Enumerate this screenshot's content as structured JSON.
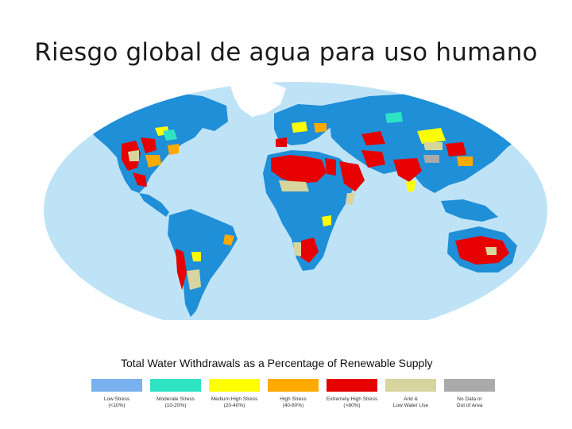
{
  "slide": {
    "title": "Riesgo global de agua para uso humano"
  },
  "map": {
    "ocean_color": "#bfe3f6",
    "legend_title": "Total Water Withdrawals as a Percentage of Renewable Supply",
    "categories": [
      {
        "id": "low",
        "label": "Low Stress",
        "range": "(<10%)",
        "color": "#79b1ef"
      },
      {
        "id": "moderate",
        "label": "Moderate Stress",
        "range": "(10-20%)",
        "color": "#2ee3c4"
      },
      {
        "id": "medium-high",
        "label": "Medium High Stress",
        "range": "(20-40%)",
        "color": "#ffff00"
      },
      {
        "id": "high",
        "label": "High Stress",
        "range": "(40-80%)",
        "color": "#ffaa00"
      },
      {
        "id": "extremely-high",
        "label": "Extremely High Stress",
        "range": "(>80%)",
        "color": "#e60000"
      },
      {
        "id": "arid",
        "label": "Arid &",
        "range": "Low Water Use",
        "color": "#d7d49e"
      },
      {
        "id": "no-data",
        "label": "No Data or",
        "range": "Out of Area",
        "color": "#aaaaaa"
      }
    ],
    "land_color": "#1f8fd8"
  }
}
